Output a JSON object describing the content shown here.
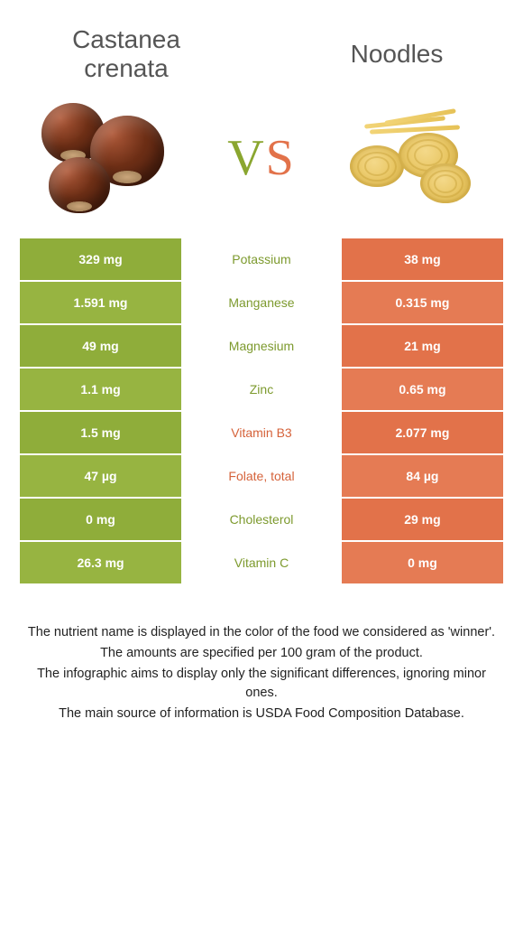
{
  "colors": {
    "green": "#8fad3a",
    "green_alt": "#97b441",
    "orange": "#e2724a",
    "orange_alt": "#e57b54",
    "mid_green_text": "#7d9a2e",
    "mid_orange_text": "#d5623a"
  },
  "header": {
    "left_title": "Castanea crenata",
    "right_title": "Noodles",
    "vs_v": "V",
    "vs_s": "S"
  },
  "rows": [
    {
      "left": "329 mg",
      "mid": "Potassium",
      "right": "38 mg",
      "winner": "left"
    },
    {
      "left": "1.591 mg",
      "mid": "Manganese",
      "right": "0.315 mg",
      "winner": "left"
    },
    {
      "left": "49 mg",
      "mid": "Magnesium",
      "right": "21 mg",
      "winner": "left"
    },
    {
      "left": "1.1 mg",
      "mid": "Zinc",
      "right": "0.65 mg",
      "winner": "left"
    },
    {
      "left": "1.5 mg",
      "mid": "Vitamin B3",
      "right": "2.077 mg",
      "winner": "right"
    },
    {
      "left": "47 µg",
      "mid": "Folate, total",
      "right": "84 µg",
      "winner": "right"
    },
    {
      "left": "0 mg",
      "mid": "Cholesterol",
      "right": "29 mg",
      "winner": "left"
    },
    {
      "left": "26.3 mg",
      "mid": "Vitamin C",
      "right": "0 mg",
      "winner": "left"
    }
  ],
  "footer": {
    "p1": "The nutrient name is displayed in the color of the food we considered as 'winner'.",
    "p2": "The amounts are specified per 100 gram of the product.",
    "p3": "The infographic aims to display only the significant differences, ignoring minor ones.",
    "p4": "The main source of information is USDA Food Composition Database."
  }
}
